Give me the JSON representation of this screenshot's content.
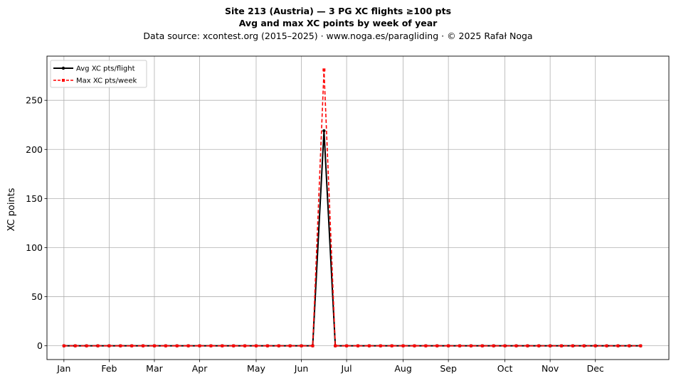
{
  "chart_data": {
    "type": "line",
    "title": "Site 213 (Austria)  —  3 PG XC flights ≥100 pts",
    "subtitle": "Avg and max XC points by week of year",
    "source_note": "Data source: xcontest.org (2015–2025)  ·  www.noga.es/paragliding  ·  © 2025 Rafał Noga",
    "xlabel": "",
    "ylabel": "XC points",
    "xlim": [
      -1.5,
      53.5
    ],
    "ylim": [
      -14,
      295
    ],
    "yticks": [
      0,
      50,
      100,
      150,
      200,
      250
    ],
    "xtick_weeks": [
      0,
      4,
      8,
      12,
      17,
      21,
      25,
      30,
      34,
      39,
      43,
      47
    ],
    "xtick_labels": [
      "Jan",
      "Feb",
      "Mar",
      "Apr",
      "May",
      "Jun",
      "Jul",
      "Aug",
      "Sep",
      "Oct",
      "Nov",
      "Dec"
    ],
    "grid": true,
    "legend_position": "top-left",
    "x": [
      0,
      1,
      2,
      3,
      4,
      5,
      6,
      7,
      8,
      9,
      10,
      11,
      12,
      13,
      14,
      15,
      16,
      17,
      18,
      19,
      20,
      21,
      22,
      23,
      24,
      25,
      26,
      27,
      28,
      29,
      30,
      31,
      32,
      33,
      34,
      35,
      36,
      37,
      38,
      39,
      40,
      41,
      42,
      43,
      44,
      45,
      46,
      47,
      48,
      49,
      50,
      51
    ],
    "series": [
      {
        "name": "Avg XC pts/flight",
        "color": "#000000",
        "style": "solid-circle",
        "values": [
          0,
          0,
          0,
          0,
          0,
          0,
          0,
          0,
          0,
          0,
          0,
          0,
          0,
          0,
          0,
          0,
          0,
          0,
          0,
          0,
          0,
          0,
          0,
          219,
          0,
          0,
          0,
          0,
          0,
          0,
          0,
          0,
          0,
          0,
          0,
          0,
          0,
          0,
          0,
          0,
          0,
          0,
          0,
          0,
          0,
          0,
          0,
          0,
          0,
          0,
          0,
          0
        ]
      },
      {
        "name": "Max XC pts/week",
        "color": "#ff0000",
        "style": "dashed-square",
        "values": [
          0,
          0,
          0,
          0,
          0,
          0,
          0,
          0,
          0,
          0,
          0,
          0,
          0,
          0,
          0,
          0,
          0,
          0,
          0,
          0,
          0,
          0,
          0,
          281,
          0,
          0,
          0,
          0,
          0,
          0,
          0,
          0,
          0,
          0,
          0,
          0,
          0,
          0,
          0,
          0,
          0,
          0,
          0,
          0,
          0,
          0,
          0,
          0,
          0,
          0,
          0,
          0
        ]
      }
    ]
  }
}
